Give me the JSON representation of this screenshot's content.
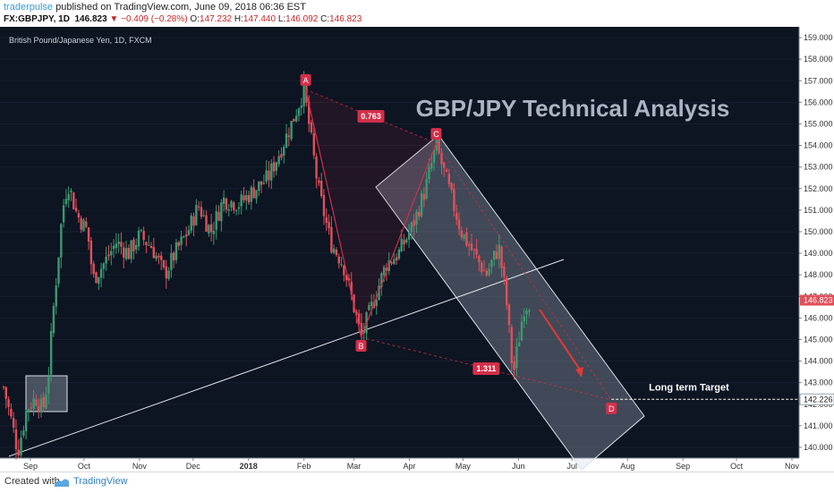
{
  "header": {
    "publisher": "traderpulse",
    "published_text": "published on TradingView.com, June 09, 2018 06:36 EST",
    "symbol": "FX:GBPJPY, 1D",
    "last": "146.823",
    "change": "▼ −0.409 (−0.28%)",
    "ohlc_o_label": "O:",
    "ohlc_o": "147.232",
    "ohlc_h_label": "H:",
    "ohlc_h": "147.440",
    "ohlc_l_label": "L:",
    "ohlc_l": "146.092",
    "ohlc_c_label": "C:",
    "ohlc_c": "146.823"
  },
  "footer": {
    "created_with": "Created with",
    "brand": "TradingView"
  },
  "colors": {
    "background": "#0d1422",
    "up": "#3d9970",
    "down": "#e0505a",
    "pattern": "#d32f4a",
    "last_price_bg": "#e0505a"
  },
  "chart_data": {
    "type": "candlestick",
    "instrument": "British Pound/Japanese Yen, 1D, FXCM",
    "title": "GBP/JPY Technical Analysis",
    "x_tick_labels": [
      "Sep",
      "Oct",
      "Nov",
      "Dec",
      "2018",
      "Feb",
      "Mar",
      "Apr",
      "May",
      "Jun",
      "Jul",
      "Aug",
      "Sep",
      "Oct",
      "Nov"
    ],
    "y_tick_labels": [
      "140.000",
      "141.000",
      "142.000",
      "143.000",
      "144.000",
      "145.000",
      "146.000",
      "147.000",
      "148.000",
      "149.000",
      "150.000",
      "151.000",
      "152.000",
      "153.000",
      "154.000",
      "155.000",
      "156.000",
      "157.000",
      "158.000",
      "159.000"
    ],
    "ylim": [
      139.5,
      159.5
    ],
    "last_price_label": "146.823",
    "target_price_label": "142.226",
    "target_text": "Long term Target",
    "price_path": [
      [
        "2017-08-17",
        142.8
      ],
      [
        "2017-08-22",
        141.0
      ],
      [
        "2017-08-25",
        139.8
      ],
      [
        "2017-08-30",
        141.8
      ],
      [
        "2017-09-04",
        142.3
      ],
      [
        "2017-09-08",
        141.7
      ],
      [
        "2017-09-11",
        143.3
      ],
      [
        "2017-09-14",
        146.5
      ],
      [
        "2017-09-19",
        151.0
      ],
      [
        "2017-09-22",
        152.3
      ],
      [
        "2017-09-27",
        150.8
      ],
      [
        "2017-10-03",
        150.0
      ],
      [
        "2017-10-06",
        147.8
      ],
      [
        "2017-10-12",
        148.5
      ],
      [
        "2017-10-19",
        149.5
      ],
      [
        "2017-10-26",
        149.0
      ],
      [
        "2017-11-01",
        149.8
      ],
      [
        "2017-11-08",
        149.3
      ],
      [
        "2017-11-15",
        148.0
      ],
      [
        "2017-11-21",
        149.0
      ],
      [
        "2017-11-28",
        150.0
      ],
      [
        "2017-12-04",
        151.2
      ],
      [
        "2017-12-11",
        150.0
      ],
      [
        "2017-12-18",
        151.5
      ],
      [
        "2017-12-27",
        151.3
      ],
      [
        "2018-01-05",
        152.0
      ],
      [
        "2018-01-12",
        152.5
      ],
      [
        "2018-01-19",
        153.8
      ],
      [
        "2018-01-26",
        155.2
      ],
      [
        "2018-02-01",
        156.6
      ],
      [
        "2018-02-09",
        152.0
      ],
      [
        "2018-02-16",
        149.5
      ],
      [
        "2018-02-23",
        148.5
      ],
      [
        "2018-03-01",
        146.5
      ],
      [
        "2018-03-05",
        145.1
      ],
      [
        "2018-03-12",
        146.8
      ],
      [
        "2018-03-19",
        148.5
      ],
      [
        "2018-03-26",
        149.0
      ],
      [
        "2018-04-03",
        150.3
      ],
      [
        "2018-04-10",
        152.0
      ],
      [
        "2018-04-16",
        154.0
      ],
      [
        "2018-04-23",
        152.0
      ],
      [
        "2018-04-30",
        150.0
      ],
      [
        "2018-05-07",
        149.0
      ],
      [
        "2018-05-14",
        148.0
      ],
      [
        "2018-05-21",
        149.3
      ],
      [
        "2018-05-25",
        147.0
      ],
      [
        "2018-05-29",
        143.3
      ],
      [
        "2018-06-04",
        146.5
      ],
      [
        "2018-06-08",
        146.823
      ]
    ],
    "pattern": {
      "points": [
        {
          "label": "A",
          "date": "2018-02-02",
          "price": 156.6
        },
        {
          "label": "B",
          "date": "2018-03-05",
          "price": 145.1
        },
        {
          "label": "C",
          "date": "2018-04-16",
          "price": 154.1
        },
        {
          "label": "D",
          "date": "2018-07-23",
          "price": 142.2
        }
      ],
      "ratio_ac": "0.763",
      "ratio_bd": "1.311"
    }
  }
}
